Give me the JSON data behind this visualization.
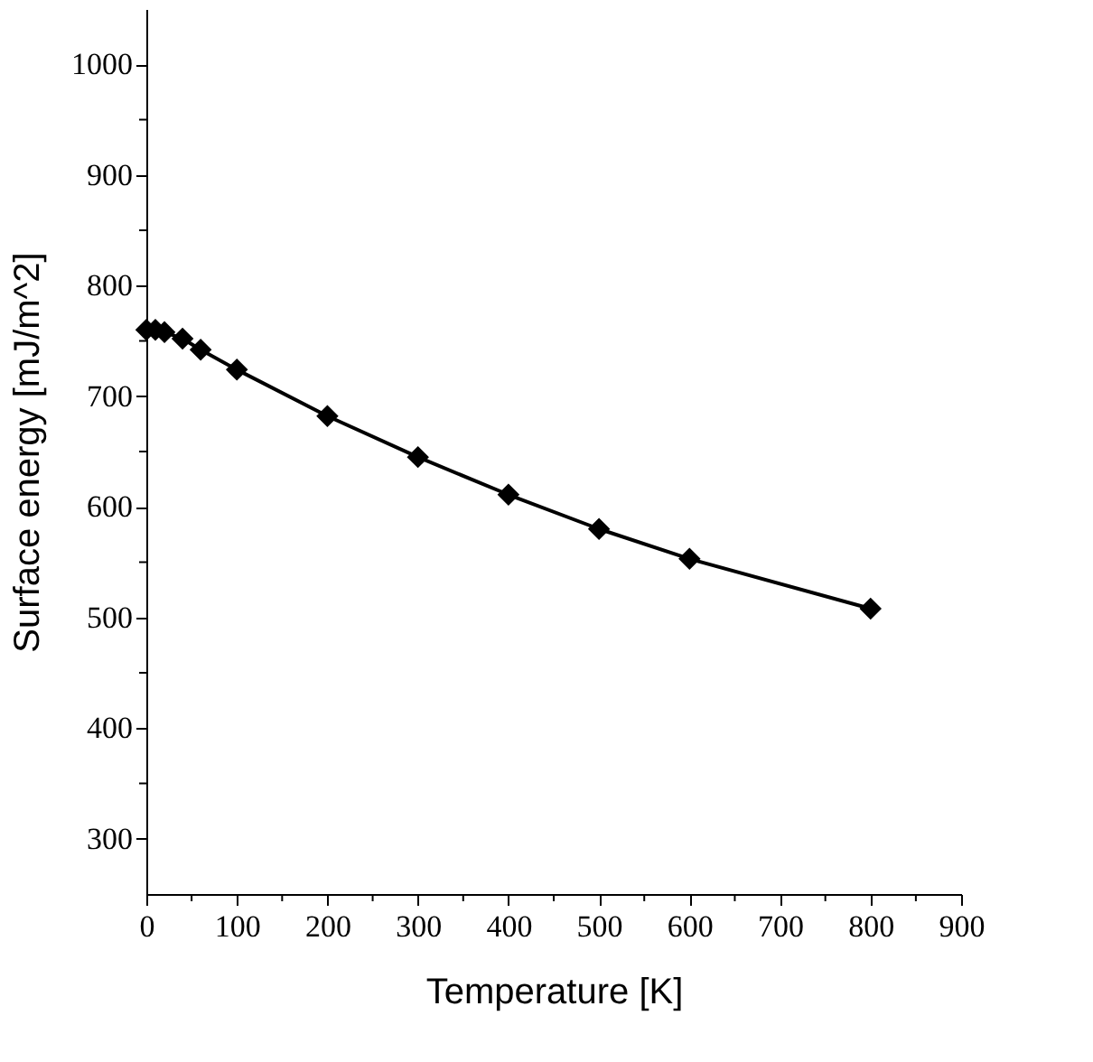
{
  "chart_data": {
    "type": "line",
    "xlabel": "Temperature [K]",
    "ylabel": "Surface energy [mJ/m^2]",
    "x": [
      0,
      10,
      20,
      40,
      60,
      100,
      200,
      300,
      400,
      500,
      600,
      800
    ],
    "series": [
      {
        "color": "#000000",
        "values": [
          760,
          760,
          758,
          752,
          742,
          724,
          682,
          645,
          611,
          580,
          553,
          508
        ]
      }
    ],
    "marker": "diamond",
    "line_style": "solid",
    "grid": false,
    "legend": false,
    "xlim": [
      0,
      900
    ],
    "xticks": [
      0,
      {
        "value": 50,
        "label": null
      },
      100,
      {
        "value": 150,
        "label": null
      },
      200,
      {
        "value": 250,
        "label": null
      },
      300,
      {
        "value": 350,
        "label": null
      },
      400,
      {
        "value": 450,
        "label": null
      },
      500,
      {
        "value": 550,
        "label": null
      },
      600,
      {
        "value": 650,
        "label": null
      },
      700,
      {
        "value": 750,
        "label": null
      },
      800,
      {
        "value": 850,
        "label": null
      },
      900
    ],
    "ylim": [
      250,
      1050
    ],
    "yticks": [
      300,
      {
        "value": 350,
        "label": null
      },
      400,
      {
        "value": 450,
        "label": null
      },
      500,
      {
        "value": 550,
        "label": null
      },
      600,
      {
        "value": 650,
        "label": null
      },
      700,
      {
        "value": 750,
        "label": null
      },
      800,
      {
        "value": 850,
        "label": null
      },
      900,
      {
        "value": 950,
        "label": null
      },
      1000
    ]
  }
}
